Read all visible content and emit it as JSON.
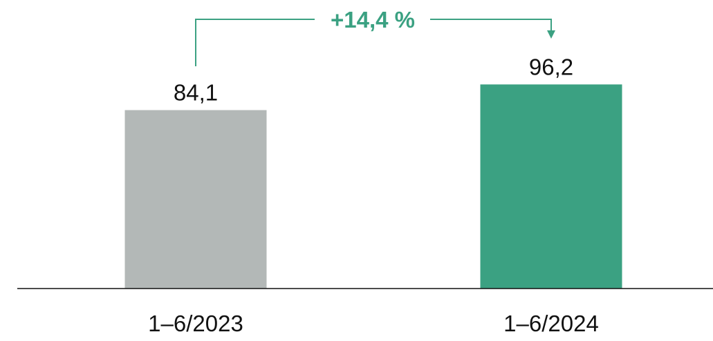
{
  "chart_data": {
    "type": "bar",
    "categories": [
      "1–6/2023",
      "1–6/2024"
    ],
    "values": [
      84.1,
      96.2
    ],
    "value_labels": [
      "84,1",
      "96,2"
    ],
    "colors": [
      "#b3b8b7",
      "#3ba182"
    ],
    "ylim": [
      0,
      136
    ],
    "annotation": "+14,4 %",
    "annotation_color": "#3ba182"
  }
}
